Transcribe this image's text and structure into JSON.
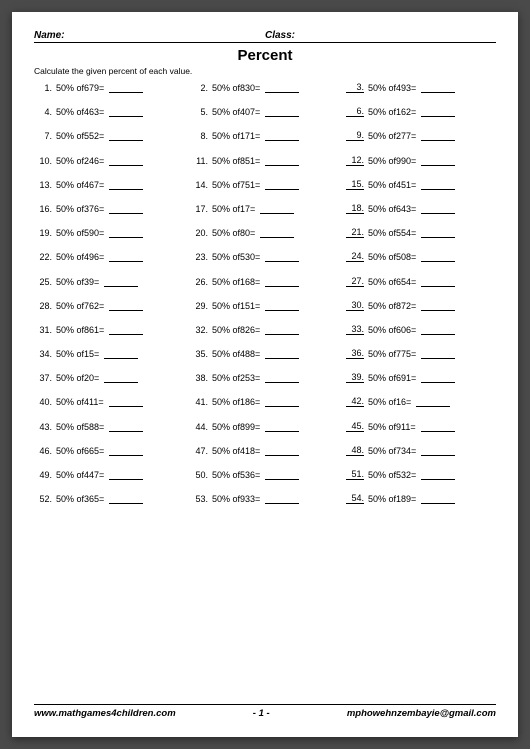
{
  "header": {
    "name_label": "Name:",
    "class_label": "Class:"
  },
  "title": "Percent",
  "instruction": "Calculate the given percent of each value.",
  "percent_label": "50%",
  "of_label": "of",
  "problems": [
    {
      "n": 1,
      "v": 679,
      "u": false
    },
    {
      "n": 2,
      "v": 830,
      "u": false
    },
    {
      "n": 3,
      "v": 493,
      "u": true
    },
    {
      "n": 4,
      "v": 463,
      "u": false
    },
    {
      "n": 5,
      "v": 407,
      "u": false
    },
    {
      "n": 6,
      "v": 162,
      "u": true
    },
    {
      "n": 7,
      "v": 552,
      "u": false
    },
    {
      "n": 8,
      "v": 171,
      "u": false
    },
    {
      "n": 9,
      "v": 277,
      "u": true
    },
    {
      "n": 10,
      "v": 246,
      "u": false
    },
    {
      "n": 11,
      "v": 851,
      "u": false
    },
    {
      "n": 12,
      "v": 990,
      "u": true
    },
    {
      "n": 13,
      "v": 467,
      "u": false
    },
    {
      "n": 14,
      "v": 751,
      "u": false
    },
    {
      "n": 15,
      "v": 451,
      "u": true
    },
    {
      "n": 16,
      "v": 376,
      "u": false
    },
    {
      "n": 17,
      "v": 17,
      "u": false
    },
    {
      "n": 18,
      "v": 643,
      "u": true
    },
    {
      "n": 19,
      "v": 590,
      "u": false
    },
    {
      "n": 20,
      "v": 80,
      "u": false
    },
    {
      "n": 21,
      "v": 554,
      "u": true
    },
    {
      "n": 22,
      "v": 496,
      "u": false
    },
    {
      "n": 23,
      "v": 530,
      "u": false
    },
    {
      "n": 24,
      "v": 508,
      "u": true
    },
    {
      "n": 25,
      "v": 39,
      "u": false
    },
    {
      "n": 26,
      "v": 168,
      "u": false
    },
    {
      "n": 27,
      "v": 654,
      "u": true
    },
    {
      "n": 28,
      "v": 762,
      "u": false
    },
    {
      "n": 29,
      "v": 151,
      "u": false
    },
    {
      "n": 30,
      "v": 872,
      "u": true
    },
    {
      "n": 31,
      "v": 861,
      "u": false
    },
    {
      "n": 32,
      "v": 826,
      "u": false
    },
    {
      "n": 33,
      "v": 606,
      "u": true
    },
    {
      "n": 34,
      "v": 15,
      "u": false
    },
    {
      "n": 35,
      "v": 488,
      "u": false
    },
    {
      "n": 36,
      "v": 775,
      "u": true
    },
    {
      "n": 37,
      "v": 20,
      "u": false
    },
    {
      "n": 38,
      "v": 253,
      "u": false
    },
    {
      "n": 39,
      "v": 691,
      "u": true
    },
    {
      "n": 40,
      "v": 411,
      "u": false
    },
    {
      "n": 41,
      "v": 186,
      "u": false
    },
    {
      "n": 42,
      "v": 16,
      "u": true
    },
    {
      "n": 43,
      "v": 588,
      "u": false
    },
    {
      "n": 44,
      "v": 899,
      "u": false
    },
    {
      "n": 45,
      "v": 911,
      "u": true
    },
    {
      "n": 46,
      "v": 665,
      "u": false
    },
    {
      "n": 47,
      "v": 418,
      "u": false
    },
    {
      "n": 48,
      "v": 734,
      "u": true
    },
    {
      "n": 49,
      "v": 447,
      "u": false
    },
    {
      "n": 50,
      "v": 536,
      "u": false
    },
    {
      "n": 51,
      "v": 532,
      "u": true
    },
    {
      "n": 52,
      "v": 365,
      "u": false
    },
    {
      "n": 53,
      "v": 933,
      "u": false
    },
    {
      "n": 54,
      "v": 189,
      "u": true
    }
  ],
  "footer": {
    "left": "www.mathgames4children.com",
    "center": "- 1 -",
    "right": "mphowehnzembayie@gmail.com"
  },
  "colors": {
    "page_bg": "#ffffff",
    "body_bg": "#4a4a4a",
    "text": "#000000",
    "border": "#000000"
  }
}
